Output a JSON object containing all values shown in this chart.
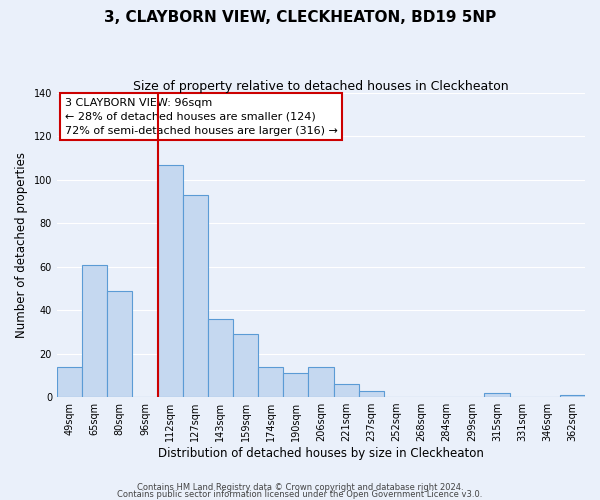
{
  "title": "3, CLAYBORN VIEW, CLECKHEATON, BD19 5NP",
  "subtitle": "Size of property relative to detached houses in Cleckheaton",
  "xlabel": "Distribution of detached houses by size in Cleckheaton",
  "ylabel": "Number of detached properties",
  "footer1": "Contains HM Land Registry data © Crown copyright and database right 2024.",
  "footer2": "Contains public sector information licensed under the Open Government Licence v3.0.",
  "categories": [
    "49sqm",
    "65sqm",
    "80sqm",
    "96sqm",
    "112sqm",
    "127sqm",
    "143sqm",
    "159sqm",
    "174sqm",
    "190sqm",
    "206sqm",
    "221sqm",
    "237sqm",
    "252sqm",
    "268sqm",
    "284sqm",
    "299sqm",
    "315sqm",
    "331sqm",
    "346sqm",
    "362sqm"
  ],
  "values": [
    14,
    61,
    49,
    0,
    107,
    93,
    36,
    29,
    14,
    11,
    14,
    6,
    3,
    0,
    0,
    0,
    0,
    2,
    0,
    0,
    1
  ],
  "bar_color": "#c5d8f0",
  "bar_edge_color": "#5b9bd5",
  "vline_color": "#cc0000",
  "vline_x": 3.5,
  "annotation_text": "3 CLAYBORN VIEW: 96sqm\n← 28% of detached houses are smaller (124)\n72% of semi-detached houses are larger (316) →",
  "annotation_box_color": "#ffffff",
  "annotation_box_edge_color": "#cc0000",
  "ylim": [
    0,
    140
  ],
  "yticks": [
    0,
    20,
    40,
    60,
    80,
    100,
    120,
    140
  ],
  "background_color": "#eaf0fa",
  "grid_color": "#ffffff",
  "title_fontsize": 11,
  "subtitle_fontsize": 9,
  "axis_label_fontsize": 8.5,
  "tick_fontsize": 7,
  "footer_fontsize": 6,
  "annotation_fontsize": 8
}
